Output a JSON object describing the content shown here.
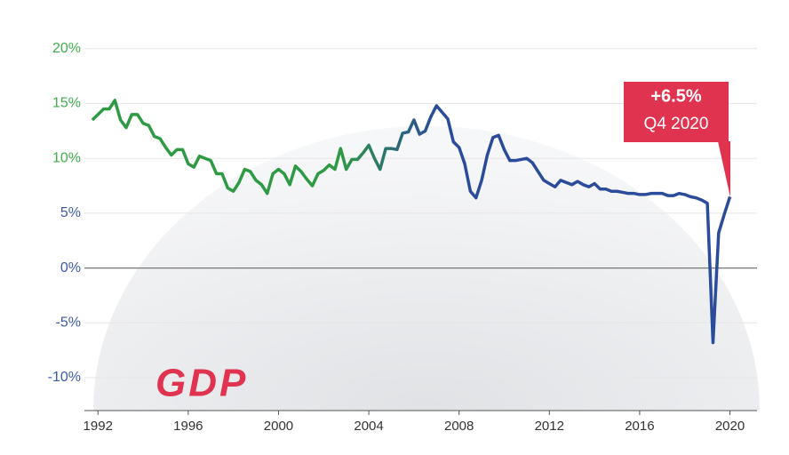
{
  "chart_data": {
    "type": "line",
    "logo": "GDP",
    "annotation": {
      "text": "+6.5%",
      "subtext": "Q4 2020",
      "color": "#e0334f"
    },
    "xlim": [
      1991.4,
      2021.2
    ],
    "ylim": [
      -13,
      21.2
    ],
    "xticks": [
      1992,
      1996,
      2000,
      2004,
      2008,
      2012,
      2016,
      2020
    ],
    "yticks": [
      {
        "value": 20,
        "label": "20%"
      },
      {
        "value": 15,
        "label": "15%"
      },
      {
        "value": 10,
        "label": "10%"
      },
      {
        "value": 5,
        "label": "5%"
      },
      {
        "value": 0,
        "label": "0%"
      },
      {
        "value": -5,
        "label": "-5%"
      },
      {
        "value": -10,
        "label": "-10%"
      }
    ],
    "ytick_colors": [
      "#3fae4c",
      "#3fae4c",
      "#3fae4c",
      "#3c5aa8",
      "#3c5aa8",
      "#3c5aa8",
      "#3c5aa8"
    ],
    "grid": true,
    "series": [
      {
        "colors": [
          "#2e9a44",
          "#2b4c9b"
        ],
        "x": [
          1991.75,
          1992,
          1992.25,
          1992.5,
          1992.75,
          1993,
          1993.25,
          1993.5,
          1993.75,
          1994,
          1994.25,
          1994.5,
          1994.75,
          1995,
          1995.25,
          1995.5,
          1995.75,
          1996,
          1996.25,
          1996.5,
          1996.75,
          1997,
          1997.25,
          1997.5,
          1997.75,
          1998,
          1998.25,
          1998.5,
          1998.75,
          1999,
          1999.25,
          1999.5,
          1999.75,
          2000,
          2000.25,
          2000.5,
          2000.75,
          2001,
          2001.25,
          2001.5,
          2001.75,
          2002,
          2002.25,
          2002.5,
          2002.75,
          2003,
          2003.25,
          2003.5,
          2003.75,
          2004,
          2004.25,
          2004.5,
          2004.75,
          2005,
          2005.25,
          2005.5,
          2005.75,
          2006,
          2006.25,
          2006.5,
          2006.75,
          2007,
          2007.25,
          2007.5,
          2007.75,
          2008,
          2008.25,
          2008.5,
          2008.75,
          2009,
          2009.25,
          2009.5,
          2009.75,
          2010,
          2010.25,
          2010.5,
          2010.75,
          2011,
          2011.25,
          2011.5,
          2011.75,
          2012,
          2012.25,
          2012.5,
          2012.75,
          2013,
          2013.25,
          2013.5,
          2013.75,
          2014,
          2014.25,
          2014.5,
          2014.75,
          2015,
          2015.25,
          2015.5,
          2015.75,
          2016,
          2016.25,
          2016.5,
          2016.75,
          2017,
          2017.25,
          2017.5,
          2017.75,
          2018,
          2018.25,
          2018.5,
          2018.75,
          2019,
          2019.25,
          2019.5,
          2019.75,
          2020
        ],
        "values": [
          13.5,
          14.0,
          14.5,
          14.5,
          15.3,
          13.5,
          12.8,
          14.0,
          14.0,
          13.2,
          13.0,
          12.0,
          11.8,
          11.0,
          10.3,
          10.8,
          10.8,
          9.5,
          9.2,
          10.2,
          10.0,
          9.8,
          8.6,
          8.6,
          7.3,
          7.0,
          7.8,
          9.0,
          8.8,
          8.0,
          7.6,
          6.8,
          8.6,
          9.0,
          8.6,
          7.6,
          9.3,
          8.8,
          8.1,
          7.5,
          8.6,
          8.9,
          9.4,
          9.0,
          10.9,
          9.0,
          9.9,
          9.9,
          10.5,
          11.2,
          10.0,
          9.0,
          10.9,
          10.9,
          10.8,
          12.3,
          12.4,
          13.5,
          12.2,
          12.5,
          13.8,
          14.8,
          14.2,
          13.6,
          11.5,
          11.0,
          9.5,
          7.0,
          6.4,
          8.0,
          10.3,
          11.9,
          12.1,
          10.8,
          9.8,
          9.8,
          9.9,
          10.0,
          9.6,
          8.8,
          8.0,
          7.7,
          7.4,
          8.0,
          7.8,
          7.6,
          7.9,
          7.6,
          7.4,
          7.7,
          7.2,
          7.2,
          7.0,
          7.0,
          6.9,
          6.8,
          6.8,
          6.7,
          6.7,
          6.8,
          6.8,
          6.8,
          6.6,
          6.6,
          6.8,
          6.7,
          6.5,
          6.4,
          6.2,
          5.9,
          -6.8,
          3.2,
          4.9,
          6.5
        ]
      }
    ]
  }
}
